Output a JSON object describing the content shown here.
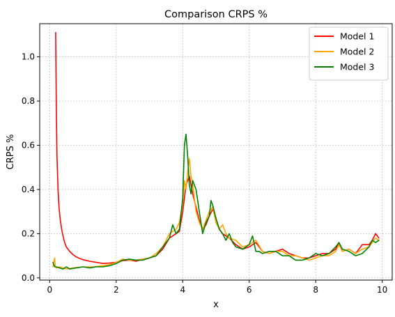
{
  "chart_data": {
    "type": "line",
    "title": "Comparison CRPS %",
    "xlabel": "x",
    "ylabel": "CRPS %",
    "xlim": [
      -0.3,
      10.3
    ],
    "ylim": [
      -0.01,
      1.15
    ],
    "xticks": [
      0,
      2,
      4,
      6,
      8,
      10
    ],
    "yticks": [
      0.0,
      0.2,
      0.4,
      0.6,
      0.8,
      1.0
    ],
    "grid": true,
    "legend_position": "top-right",
    "series": [
      {
        "name": "Model 1",
        "color": "#ff0000",
        "x": [
          0.18,
          0.2,
          0.22,
          0.25,
          0.28,
          0.32,
          0.36,
          0.4,
          0.45,
          0.5,
          0.55,
          0.6,
          0.7,
          0.8,
          0.9,
          1.0,
          1.2,
          1.4,
          1.6,
          1.8,
          2.0,
          2.2,
          2.4,
          2.6,
          2.8,
          3.0,
          3.2,
          3.4,
          3.6,
          3.8,
          3.9,
          4.0,
          4.1,
          4.2,
          4.3,
          4.4,
          4.5,
          4.6,
          4.7,
          4.8,
          4.9,
          5.0,
          5.1,
          5.2,
          5.4,
          5.6,
          5.8,
          6.0,
          6.2,
          6.4,
          6.6,
          6.8,
          7.0,
          7.2,
          7.4,
          7.6,
          7.8,
          8.0,
          8.2,
          8.4,
          8.6,
          8.7,
          8.8,
          9.0,
          9.2,
          9.4,
          9.6,
          9.7,
          9.8,
          9.9
        ],
        "y": [
          1.11,
          0.75,
          0.55,
          0.4,
          0.32,
          0.26,
          0.22,
          0.19,
          0.16,
          0.14,
          0.13,
          0.12,
          0.105,
          0.095,
          0.088,
          0.082,
          0.075,
          0.07,
          0.065,
          0.067,
          0.07,
          0.078,
          0.08,
          0.075,
          0.085,
          0.09,
          0.1,
          0.13,
          0.18,
          0.2,
          0.21,
          0.3,
          0.42,
          0.46,
          0.38,
          0.32,
          0.26,
          0.22,
          0.24,
          0.28,
          0.31,
          0.27,
          0.22,
          0.2,
          0.18,
          0.15,
          0.13,
          0.14,
          0.16,
          0.12,
          0.11,
          0.12,
          0.13,
          0.11,
          0.1,
          0.09,
          0.09,
          0.1,
          0.11,
          0.11,
          0.13,
          0.16,
          0.12,
          0.13,
          0.11,
          0.15,
          0.15,
          0.17,
          0.2,
          0.18
        ]
      },
      {
        "name": "Model 2",
        "color": "#ffa500",
        "x": [
          0.1,
          0.12,
          0.15,
          0.17,
          0.2,
          0.3,
          0.5,
          0.7,
          1.0,
          1.3,
          1.6,
          1.8,
          2.0,
          2.2,
          2.4,
          2.6,
          2.8,
          3.0,
          3.2,
          3.4,
          3.6,
          3.8,
          3.9,
          4.0,
          4.05,
          4.1,
          4.15,
          4.2,
          4.25,
          4.3,
          4.35,
          4.4,
          4.5,
          4.6,
          4.7,
          4.8,
          4.9,
          5.0,
          5.1,
          5.2,
          5.3,
          5.4,
          5.6,
          5.8,
          6.0,
          6.2,
          6.4,
          6.6,
          6.8,
          7.0,
          7.2,
          7.4,
          7.6,
          7.8,
          8.0,
          8.2,
          8.4,
          8.6,
          8.7,
          8.8,
          9.0,
          9.2,
          9.4,
          9.6,
          9.7,
          9.8,
          9.9
        ],
        "y": [
          0.05,
          0.07,
          0.09,
          0.05,
          0.045,
          0.05,
          0.04,
          0.045,
          0.05,
          0.05,
          0.055,
          0.06,
          0.07,
          0.085,
          0.08,
          0.08,
          0.085,
          0.09,
          0.11,
          0.14,
          0.2,
          0.22,
          0.25,
          0.34,
          0.44,
          0.4,
          0.48,
          0.54,
          0.46,
          0.42,
          0.36,
          0.3,
          0.25,
          0.22,
          0.26,
          0.3,
          0.32,
          0.25,
          0.22,
          0.24,
          0.2,
          0.18,
          0.17,
          0.14,
          0.15,
          0.17,
          0.12,
          0.11,
          0.12,
          0.12,
          0.1,
          0.1,
          0.09,
          0.08,
          0.09,
          0.1,
          0.1,
          0.12,
          0.15,
          0.12,
          0.13,
          0.11,
          0.13,
          0.14,
          0.16,
          0.18,
          0.17
        ]
      },
      {
        "name": "Model 3",
        "color": "#008000",
        "x": [
          0.1,
          0.15,
          0.2,
          0.3,
          0.4,
          0.5,
          0.6,
          0.8,
          1.0,
          1.2,
          1.4,
          1.6,
          1.8,
          2.0,
          2.2,
          2.4,
          2.6,
          2.8,
          3.0,
          3.2,
          3.4,
          3.6,
          3.7,
          3.8,
          3.9,
          4.0,
          4.05,
          4.1,
          4.15,
          4.2,
          4.25,
          4.3,
          4.4,
          4.5,
          4.6,
          4.7,
          4.8,
          4.85,
          4.9,
          5.0,
          5.1,
          5.2,
          5.3,
          5.4,
          5.5,
          5.6,
          5.8,
          6.0,
          6.1,
          6.2,
          6.3,
          6.4,
          6.6,
          6.8,
          7.0,
          7.2,
          7.4,
          7.6,
          7.8,
          8.0,
          8.2,
          8.4,
          8.6,
          8.7,
          8.8,
          9.0,
          9.2,
          9.4,
          9.6,
          9.7,
          9.8,
          9.9
        ],
        "y": [
          0.07,
          0.05,
          0.05,
          0.045,
          0.04,
          0.05,
          0.04,
          0.045,
          0.05,
          0.045,
          0.05,
          0.05,
          0.055,
          0.065,
          0.08,
          0.085,
          0.08,
          0.08,
          0.09,
          0.1,
          0.14,
          0.18,
          0.24,
          0.2,
          0.22,
          0.36,
          0.6,
          0.65,
          0.55,
          0.42,
          0.38,
          0.44,
          0.4,
          0.3,
          0.2,
          0.25,
          0.28,
          0.35,
          0.33,
          0.27,
          0.22,
          0.2,
          0.17,
          0.2,
          0.16,
          0.14,
          0.13,
          0.15,
          0.19,
          0.12,
          0.12,
          0.11,
          0.12,
          0.12,
          0.1,
          0.1,
          0.08,
          0.08,
          0.09,
          0.11,
          0.1,
          0.11,
          0.14,
          0.16,
          0.13,
          0.12,
          0.1,
          0.11,
          0.14,
          0.17,
          0.16,
          0.17
        ]
      }
    ]
  }
}
